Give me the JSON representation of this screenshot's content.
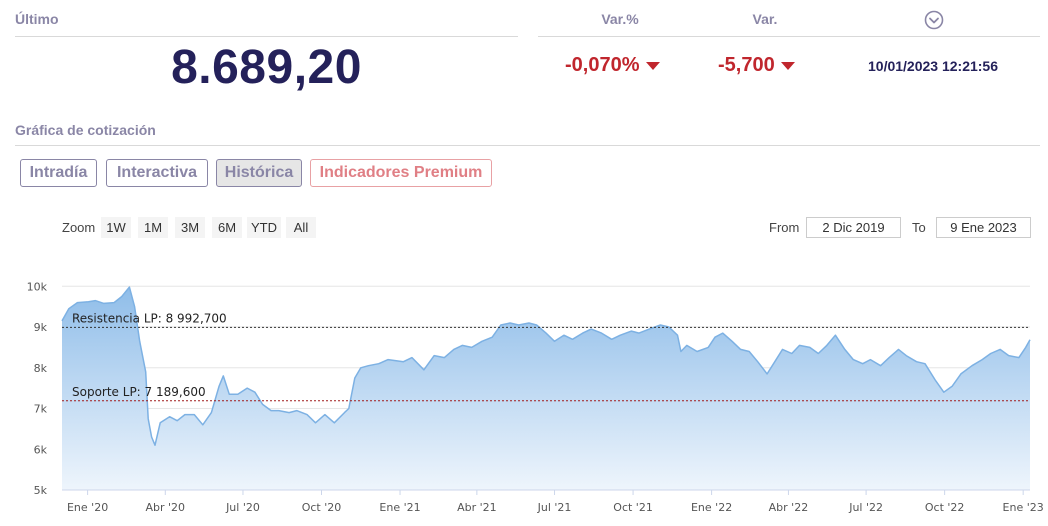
{
  "header": {
    "last_label": "Último",
    "last_value": "8.689,20",
    "var_pct_label": "Var.%",
    "var_label": "Var.",
    "var_pct_value": "-0,070%",
    "var_value": "-5,700",
    "datetime": "10/01/2023 12:21:56"
  },
  "section_title": "Gráfica de cotización",
  "tabs": [
    {
      "label": "Intradía"
    },
    {
      "label": "Interactiva"
    },
    {
      "label": "Histórica"
    },
    {
      "label": "Indicadores Premium"
    }
  ],
  "zoom": {
    "label": "Zoom",
    "buttons": [
      "1W",
      "1M",
      "3M",
      "6M",
      "YTD",
      "All"
    ]
  },
  "range": {
    "from_label": "From",
    "from_value": "2 Dic 2019",
    "to_label": "To",
    "to_value": "9 Ene 2023"
  },
  "colors": {
    "accent": "#24215a",
    "negative": "#c0262d",
    "line": "#7db1e3",
    "area_top": "#8fbde9",
    "area_bottom": "#eef5fc",
    "resistance": "#333333",
    "support": "#a01a1a"
  },
  "chart_data": {
    "type": "area",
    "ylim": [
      5000,
      10400
    ],
    "xlim": [
      "2019-12-02",
      "2023-01-09"
    ],
    "yticks": [
      {
        "value": 5000,
        "label": "5k"
      },
      {
        "value": 6000,
        "label": "6k"
      },
      {
        "value": 7000,
        "label": "7k"
      },
      {
        "value": 8000,
        "label": "8k"
      },
      {
        "value": 9000,
        "label": "9k"
      },
      {
        "value": 10000,
        "label": "10k"
      }
    ],
    "xticks": [
      {
        "date": "2020-01-01",
        "label": "Ene '20"
      },
      {
        "date": "2020-04-01",
        "label": "Abr '20"
      },
      {
        "date": "2020-07-01",
        "label": "Jul '20"
      },
      {
        "date": "2020-10-01",
        "label": "Oct '20"
      },
      {
        "date": "2021-01-01",
        "label": "Ene '21"
      },
      {
        "date": "2021-04-01",
        "label": "Abr '21"
      },
      {
        "date": "2021-07-01",
        "label": "Jul '21"
      },
      {
        "date": "2021-10-01",
        "label": "Oct '21"
      },
      {
        "date": "2022-01-01",
        "label": "Ene '22"
      },
      {
        "date": "2022-04-01",
        "label": "Abr '22"
      },
      {
        "date": "2022-07-01",
        "label": "Jul '22"
      },
      {
        "date": "2022-10-01",
        "label": "Oct '22"
      },
      {
        "date": "2023-01-01",
        "label": "Ene '23"
      }
    ],
    "lines": [
      {
        "name": "Resistencia LP: 8 992,700",
        "value": 8992.7,
        "style": "resistance"
      },
      {
        "name": "Soporte LP: 7 189,600",
        "value": 7189.6,
        "style": "support"
      }
    ],
    "series": [
      {
        "x": [
          "2019-12-02",
          "2019-12-10",
          "2019-12-20",
          "2020-01-02",
          "2020-01-10",
          "2020-01-20",
          "2020-02-01",
          "2020-02-10",
          "2020-02-19",
          "2020-02-25",
          "2020-03-02",
          "2020-03-09",
          "2020-03-12",
          "2020-03-16",
          "2020-03-20",
          "2020-03-26",
          "2020-04-06",
          "2020-04-15",
          "2020-04-24",
          "2020-05-05",
          "2020-05-15",
          "2020-05-25",
          "2020-06-03",
          "2020-06-08",
          "2020-06-15",
          "2020-06-25",
          "2020-07-06",
          "2020-07-15",
          "2020-07-24",
          "2020-08-03",
          "2020-08-12",
          "2020-08-24",
          "2020-09-02",
          "2020-09-14",
          "2020-09-24",
          "2020-10-05",
          "2020-10-16",
          "2020-10-28",
          "2020-11-02",
          "2020-11-09",
          "2020-11-16",
          "2020-11-25",
          "2020-12-07",
          "2020-12-18",
          "2021-01-05",
          "2021-01-15",
          "2021-01-29",
          "2021-02-10",
          "2021-02-22",
          "2021-03-05",
          "2021-03-15",
          "2021-03-26",
          "2021-04-07",
          "2021-04-19",
          "2021-04-29",
          "2021-05-10",
          "2021-05-20",
          "2021-06-01",
          "2021-06-10",
          "2021-06-21",
          "2021-07-01",
          "2021-07-12",
          "2021-07-22",
          "2021-08-03",
          "2021-08-13",
          "2021-08-25",
          "2021-09-06",
          "2021-09-16",
          "2021-09-29",
          "2021-10-08",
          "2021-10-20",
          "2021-11-02",
          "2021-11-12",
          "2021-11-22",
          "2021-11-26",
          "2021-12-03",
          "2021-12-15",
          "2021-12-28",
          "2022-01-05",
          "2022-01-14",
          "2022-01-25",
          "2022-02-04",
          "2022-02-14",
          "2022-02-24",
          "2022-03-07",
          "2022-03-16",
          "2022-03-25",
          "2022-04-05",
          "2022-04-14",
          "2022-04-26",
          "2022-05-06",
          "2022-05-16",
          "2022-05-26",
          "2022-06-06",
          "2022-06-16",
          "2022-06-27",
          "2022-07-06",
          "2022-07-18",
          "2022-07-28",
          "2022-08-08",
          "2022-08-17",
          "2022-08-29",
          "2022-09-08",
          "2022-09-20",
          "2022-09-30",
          "2022-10-10",
          "2022-10-20",
          "2022-11-02",
          "2022-11-14",
          "2022-11-24",
          "2022-12-05",
          "2022-12-15",
          "2022-12-27",
          "2023-01-04",
          "2023-01-09"
        ],
        "y": [
          9150,
          9450,
          9600,
          9620,
          9650,
          9580,
          9600,
          9750,
          9980,
          9500,
          8650,
          7900,
          6750,
          6300,
          6100,
          6650,
          6800,
          6700,
          6850,
          6850,
          6600,
          6900,
          7550,
          7800,
          7350,
          7350,
          7500,
          7400,
          7100,
          6950,
          6950,
          6900,
          6950,
          6850,
          6650,
          6850,
          6650,
          6900,
          7000,
          7750,
          8000,
          8050,
          8100,
          8200,
          8150,
          8250,
          7950,
          8300,
          8250,
          8450,
          8550,
          8500,
          8650,
          8750,
          9050,
          9100,
          9050,
          9100,
          9050,
          8850,
          8650,
          8800,
          8700,
          8850,
          8950,
          8850,
          8700,
          8800,
          8900,
          8850,
          8950,
          9050,
          9000,
          8800,
          8400,
          8550,
          8400,
          8500,
          8750,
          8850,
          8650,
          8450,
          8400,
          8150,
          7850,
          8150,
          8450,
          8350,
          8550,
          8500,
          8350,
          8550,
          8800,
          8450,
          8200,
          8100,
          8200,
          8050,
          8250,
          8450,
          8300,
          8150,
          8100,
          7700,
          7400,
          7550,
          7850,
          8050,
          8200,
          8350,
          8450,
          8300,
          8250,
          8500,
          8689
        ]
      }
    ]
  }
}
